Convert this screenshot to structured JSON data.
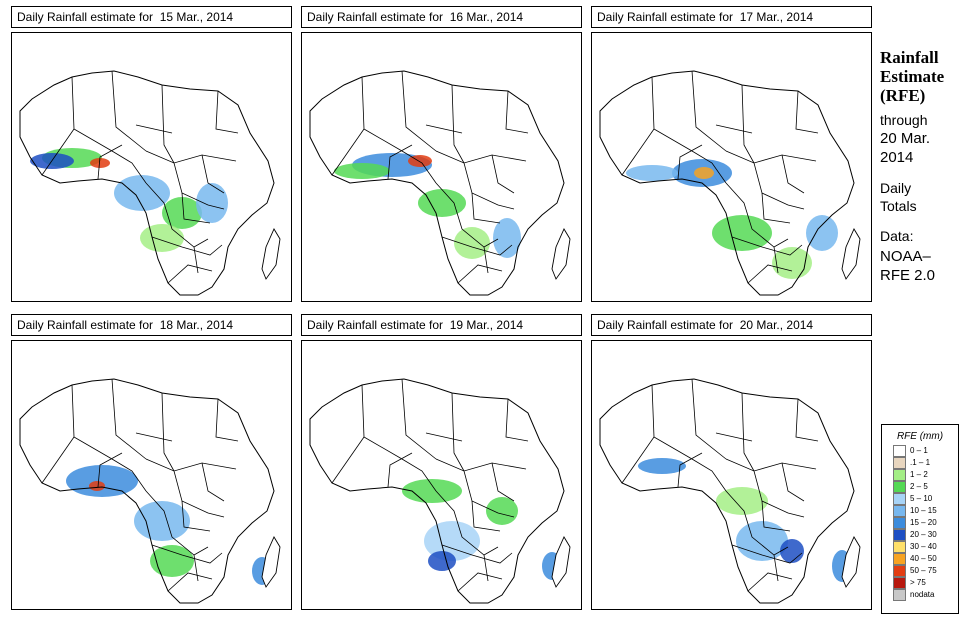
{
  "panels": [
    {
      "title": "Daily Rainfall estimate for  15 Mar., 2014"
    },
    {
      "title": "Daily Rainfall estimate for  16 Mar., 2014"
    },
    {
      "title": "Daily Rainfall estimate for  17 Mar., 2014"
    },
    {
      "title": "Daily Rainfall estimate for  18 Mar., 2014"
    },
    {
      "title": "Daily Rainfall estimate for  19 Mar., 2014"
    },
    {
      "title": "Daily Rainfall estimate for  20 Mar., 2014"
    }
  ],
  "side": {
    "title_line1": "Rainfall",
    "title_line2": "Estimate",
    "title_line3": "(RFE)",
    "through": "through",
    "date_line1": "20 Mar.",
    "date_line2": "2014",
    "daily": "Daily",
    "totals": "Totals",
    "data_label": "Data:",
    "source_line1": "NOAA–",
    "source_line2": "RFE 2.0"
  },
  "legend": {
    "title": "RFE (mm)",
    "items": [
      {
        "label": "0 – 1",
        "color": "#ffffff"
      },
      {
        "label": ".1 – 1",
        "color": "#e8d6bf"
      },
      {
        "label": "1 – 2",
        "color": "#a4ee86"
      },
      {
        "label": "2 – 5",
        "color": "#55d955"
      },
      {
        "label": "5 – 10",
        "color": "#a8d4f7"
      },
      {
        "label": "10 – 15",
        "color": "#78b8ef"
      },
      {
        "label": "15 – 20",
        "color": "#3c8cdd"
      },
      {
        "label": "20 – 30",
        "color": "#1d4fc3"
      },
      {
        "label": "30 – 40",
        "color": "#ffe06a"
      },
      {
        "label": "40 – 50",
        "color": "#f7a322"
      },
      {
        "label": "50 – 75",
        "color": "#e23d12"
      },
      {
        "label": "> 75",
        "color": "#b7180e"
      },
      {
        "label": "nodata",
        "color": "#c8c8c8"
      }
    ]
  }
}
